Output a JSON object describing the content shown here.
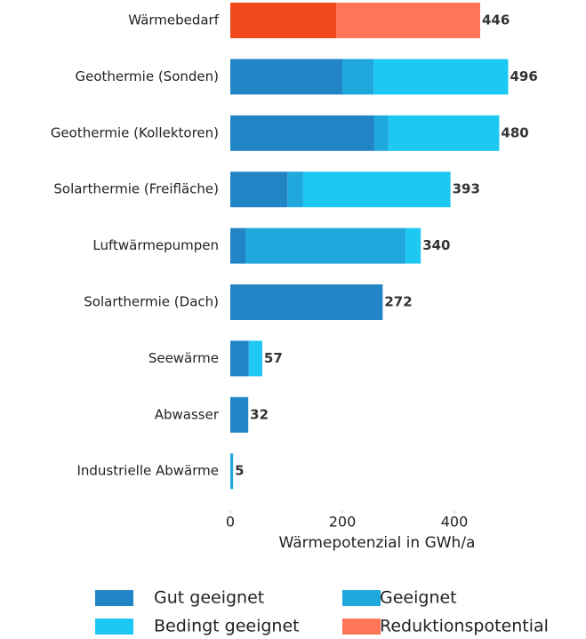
{
  "chart_data": {
    "type": "bar",
    "orientation": "horizontal",
    "stacked": true,
    "xlabel": "Wärmepotenzial in GWh/a",
    "categories": [
      "Wärmebedarf",
      "Geothermie (Sonden)",
      "Geothermie (Kollektoren)",
      "Solarthermie (Freifläche)",
      "Luftwärmepumpen",
      "Solarthermie (Dach)",
      "Seewärme",
      "Abwasser",
      "Industrielle Abwärme"
    ],
    "series": [
      {
        "color": "#f04a1c",
        "values": [
          189,
          null,
          null,
          null,
          null,
          null,
          null,
          null,
          null
        ]
      },
      {
        "name": "Gut geeignet",
        "color": "#2185c5",
        "values": [
          null,
          200,
          257,
          102,
          27,
          272,
          33,
          32,
          null
        ]
      },
      {
        "name": "Geeignet",
        "color": "#1ea8dc",
        "values": [
          null,
          56,
          25,
          28,
          286,
          null,
          null,
          null,
          5
        ]
      },
      {
        "name": "Bedingt geeignet",
        "color": "#1dc8f2",
        "values": [
          null,
          240,
          198,
          263,
          27,
          null,
          24,
          null,
          null
        ]
      },
      {
        "name": "Reduktionspotential",
        "color": "#ff7557",
        "values": [
          257,
          null,
          null,
          null,
          null,
          null,
          null,
          null,
          null
        ]
      }
    ],
    "totals": [
      446,
      496,
      480,
      393,
      340,
      272,
      57,
      32,
      5
    ],
    "xlim": [
      0,
      640
    ],
    "xticks": [
      0,
      200,
      400
    ],
    "grid": false
  }
}
